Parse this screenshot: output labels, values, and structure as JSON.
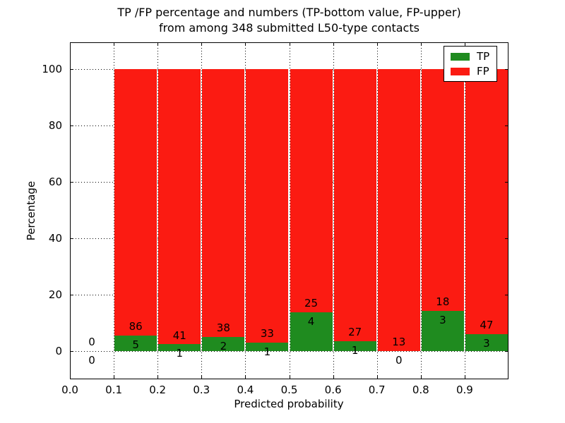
{
  "title": {
    "line1": "TP /FP percentage and numbers (TP-bottom value, FP-upper)",
    "line2": "from among 348 submitted L50-type contacts"
  },
  "chart_data": {
    "type": "bar",
    "stacked": true,
    "title": "TP /FP percentage and numbers (TP-bottom value, FP-upper) from among 348 submitted L50-type contacts",
    "xlabel": "Predicted probability",
    "ylabel": "Percentage",
    "xlim": [
      0.0,
      1.0
    ],
    "ylim": [
      -10,
      110
    ],
    "bin_width": 0.1,
    "total_contacts": 348,
    "grid": "dotted",
    "x_tick_values": [
      0.0,
      0.1,
      0.2,
      0.3,
      0.4,
      0.5,
      0.6,
      0.7,
      0.8,
      0.9
    ],
    "x_tick_labels": [
      "0.0",
      "0.1",
      "0.2",
      "0.3",
      "0.4",
      "0.5",
      "0.6",
      "0.7",
      "0.8",
      "0.9"
    ],
    "y_ticks": [
      0,
      20,
      40,
      60,
      80,
      100
    ],
    "series": [
      {
        "name": "TP",
        "color": "#1f8b1f"
      },
      {
        "name": "FP",
        "color": "#fb1b12"
      }
    ],
    "bins": [
      {
        "start": 0.0,
        "tp": 0,
        "fp": 0,
        "tp_pct": 0.0,
        "fp_pct": 0.0
      },
      {
        "start": 0.1,
        "tp": 5,
        "fp": 86,
        "tp_pct": 5.49,
        "fp_pct": 94.51
      },
      {
        "start": 0.2,
        "tp": 1,
        "fp": 41,
        "tp_pct": 2.38,
        "fp_pct": 97.62
      },
      {
        "start": 0.3,
        "tp": 2,
        "fp": 38,
        "tp_pct": 5.0,
        "fp_pct": 95.0
      },
      {
        "start": 0.4,
        "tp": 1,
        "fp": 33,
        "tp_pct": 2.94,
        "fp_pct": 97.06
      },
      {
        "start": 0.5,
        "tp": 4,
        "fp": 25,
        "tp_pct": 13.79,
        "fp_pct": 86.21
      },
      {
        "start": 0.6,
        "tp": 1,
        "fp": 27,
        "tp_pct": 3.57,
        "fp_pct": 96.43
      },
      {
        "start": 0.7,
        "tp": 0,
        "fp": 13,
        "tp_pct": 0.0,
        "fp_pct": 100.0
      },
      {
        "start": 0.8,
        "tp": 3,
        "fp": 18,
        "tp_pct": 14.29,
        "fp_pct": 85.71
      },
      {
        "start": 0.9,
        "tp": 3,
        "fp": 47,
        "tp_pct": 6.0,
        "fp_pct": 94.0
      }
    ],
    "legend": {
      "position": "upper right",
      "entries": [
        {
          "label": "TP",
          "color": "#1f8b1f"
        },
        {
          "label": "FP",
          "color": "#fb1b12"
        }
      ]
    }
  },
  "colors": {
    "tp_green": "#1f8b1f",
    "fp_red": "#fb1b12",
    "axis": "#000000",
    "background": "#ffffff"
  }
}
